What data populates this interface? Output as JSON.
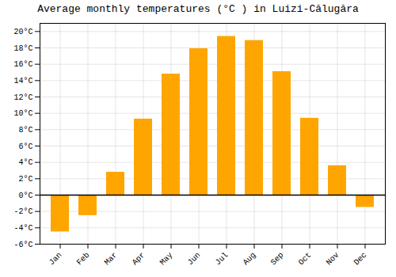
{
  "chart_data": {
    "type": "bar",
    "title": "Average monthly temperatures (°C ) in Luizi-Călugăra",
    "categories": [
      "Jan",
      "Feb",
      "Mar",
      "Apr",
      "May",
      "Jun",
      "Jul",
      "Aug",
      "Sep",
      "Oct",
      "Nov",
      "Dec"
    ],
    "values": [
      -4.5,
      -2.5,
      2.8,
      9.3,
      14.8,
      17.9,
      19.4,
      18.9,
      15.1,
      9.4,
      3.6,
      -1.5
    ],
    "color": "#FFA500",
    "ylim": [
      -6,
      21
    ],
    "yticks": [
      {
        "value": -6,
        "label": "-6°C"
      },
      {
        "value": -4,
        "label": "-4°C"
      },
      {
        "value": -2,
        "label": "-2°C"
      },
      {
        "value": 0,
        "label": "0°C"
      },
      {
        "value": 2,
        "label": "2°C"
      },
      {
        "value": 4,
        "label": "4°C"
      },
      {
        "value": 6,
        "label": "6°C"
      },
      {
        "value": 8,
        "label": "8°C"
      },
      {
        "value": 10,
        "label": "10°C"
      },
      {
        "value": 12,
        "label": "12°C"
      },
      {
        "value": 14,
        "label": "14°C"
      },
      {
        "value": 16,
        "label": "16°C"
      },
      {
        "value": 18,
        "label": "18°C"
      },
      {
        "value": 20,
        "label": "20°C"
      }
    ],
    "grid": true
  }
}
